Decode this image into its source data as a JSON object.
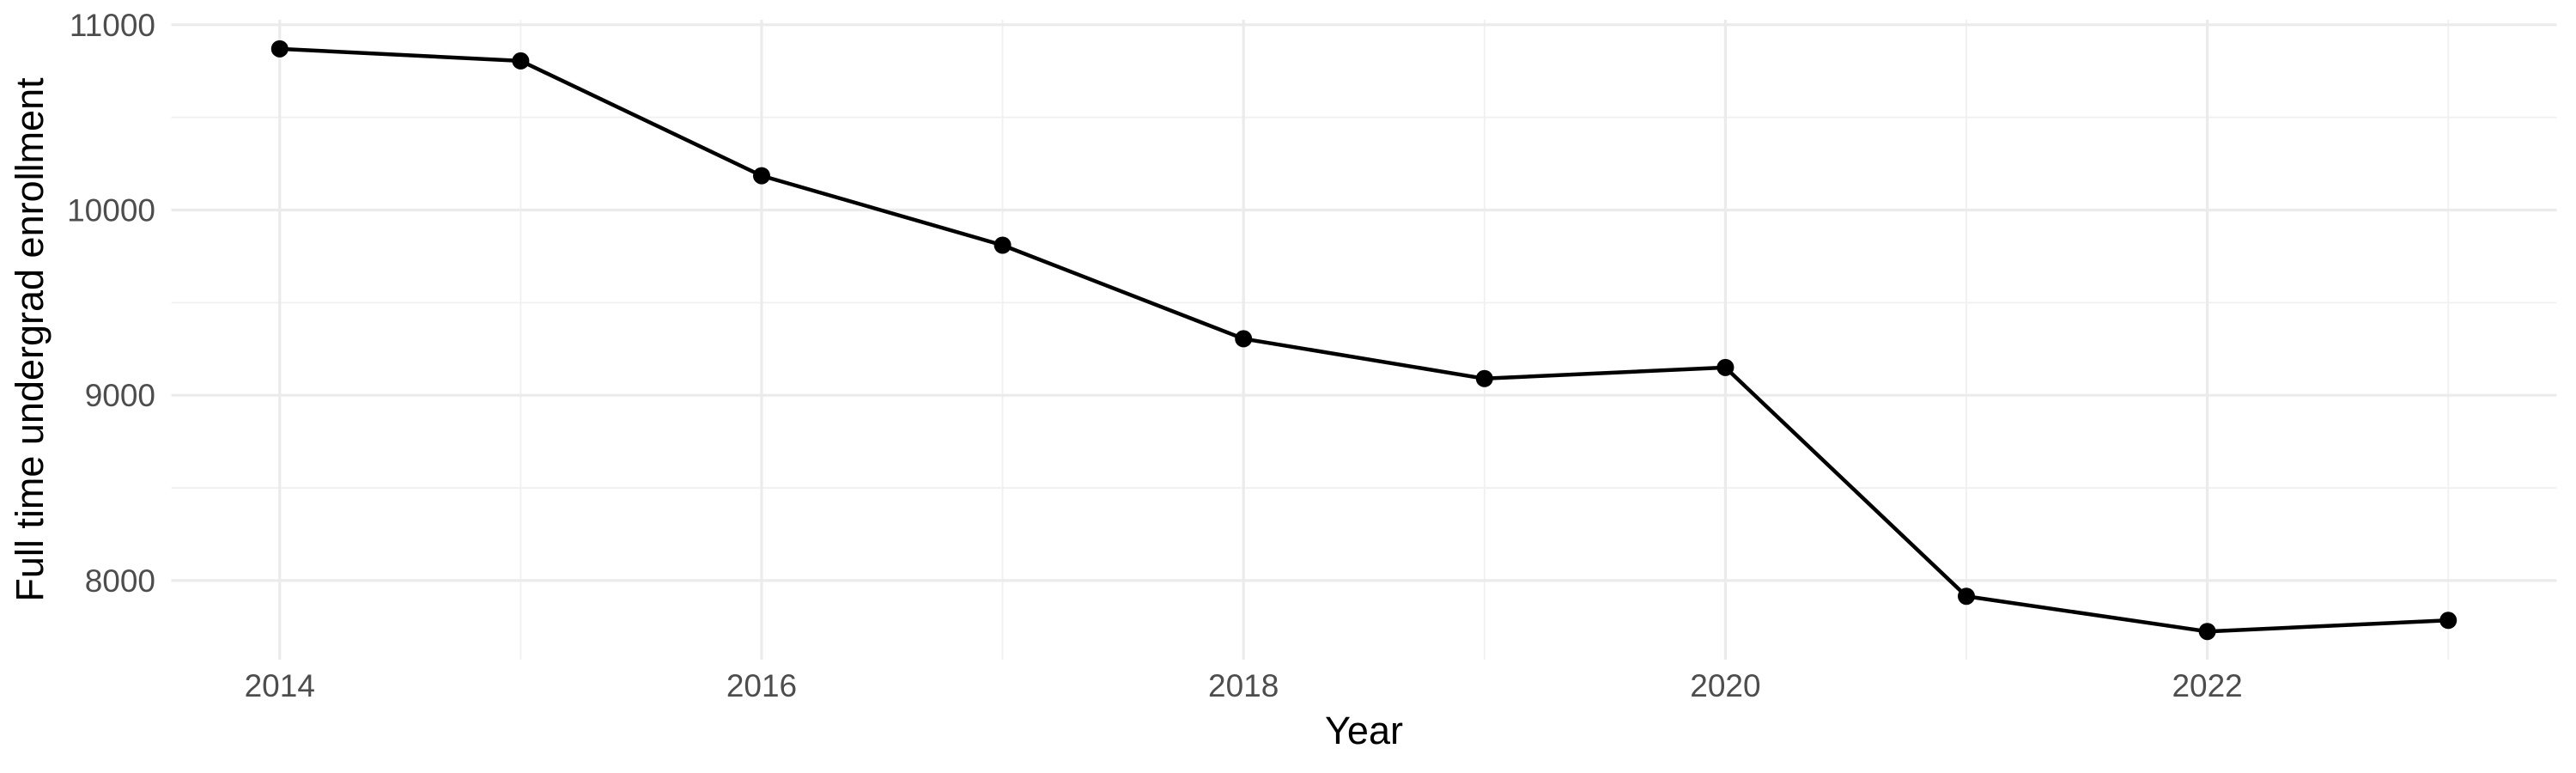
{
  "chart_data": {
    "type": "line",
    "title": "",
    "xlabel": "Year",
    "ylabel": "Full time undergrad enrollment",
    "x": [
      2014,
      2015,
      2016,
      2017,
      2018,
      2019,
      2020,
      2021,
      2022,
      2023
    ],
    "series": [
      {
        "name": "Full time undergrad enrollment",
        "values": [
          10870,
          10805,
          10185,
          9810,
          9305,
          9090,
          9150,
          7915,
          7725,
          7785
        ]
      }
    ],
    "x_ticks": {
      "major": [
        2014,
        2016,
        2018,
        2020,
        2022
      ],
      "minor": [
        2015,
        2017,
        2019,
        2021,
        2023
      ]
    },
    "y_ticks": {
      "major": [
        8000,
        9000,
        10000,
        11000
      ],
      "minor": [
        8500,
        9500,
        10500
      ]
    },
    "xlim": [
      2013.55,
      2023.45
    ],
    "ylim": [
      7573,
      11027
    ],
    "grid": true,
    "legend_position": "none",
    "marker": "filled-circle",
    "colors": {
      "line": "#000000",
      "point": "#000000",
      "grid_major": "#ebebeb",
      "grid_minor": "#f0f0f0",
      "tick_label": "#4d4d4d",
      "axis_title": "#000000",
      "background": "#ffffff"
    }
  }
}
